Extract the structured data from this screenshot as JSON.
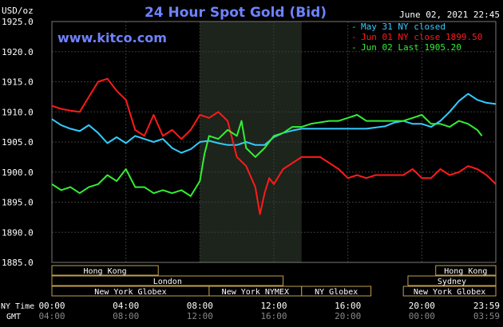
{
  "chart_data": {
    "type": "line",
    "title": "24 Hour Spot Gold (Bid)",
    "timestamp": "June 02, 2021 22:45",
    "watermark": "www.kitco.com",
    "ylabel": "USD/oz",
    "ylim": [
      1885,
      1925
    ],
    "yticks": [
      "1925.0",
      "1920.0",
      "1915.0",
      "1910.0",
      "1905.0",
      "1900.0",
      "1895.0",
      "1890.0",
      "1885.0"
    ],
    "xlim": [
      0,
      24
    ],
    "ny_time_label": "NY Time",
    "gmt_label": "GMT",
    "ny_ticks": [
      "00:00",
      "04:00",
      "08:00",
      "12:00",
      "16:00",
      "20:00",
      "23:59"
    ],
    "gmt_ticks": [
      "04:00",
      "08:00",
      "12:00",
      "16:00",
      "20:00",
      "00:00",
      "03:59"
    ],
    "grid": true,
    "legend_position": "top-right",
    "shaded_hours": [
      8.0,
      13.5
    ],
    "sessions": [
      {
        "label": "Hong Kong",
        "start": 0.0,
        "end": 5.75,
        "row": 0
      },
      {
        "label": "Hong Kong",
        "start": 20.75,
        "end": 24.0,
        "row": 0
      },
      {
        "label": "London",
        "start": 0.0,
        "end": 12.5,
        "row": 1
      },
      {
        "label": "Sydney",
        "start": 19.25,
        "end": 24.0,
        "row": 1
      },
      {
        "label": "New York Globex",
        "start": 0.0,
        "end": 8.5,
        "row": 2
      },
      {
        "label": "New York NYMEX",
        "start": 8.5,
        "end": 13.5,
        "row": 2
      },
      {
        "label": "NY Globex",
        "start": 13.5,
        "end": 17.25,
        "row": 2
      },
      {
        "label": "New York Globex",
        "start": 19.0,
        "end": 24.0,
        "row": 2
      }
    ],
    "series": [
      {
        "name": "May 31 NY closed",
        "color": "#33ccff",
        "x": [
          0,
          0.5,
          1.0,
          1.5,
          2.0,
          2.5,
          3.0,
          3.5,
          4.0,
          4.5,
          5.0,
          5.5,
          6.0,
          6.5,
          7.0,
          7.5,
          8.0,
          8.5,
          9.0,
          9.5,
          10.0,
          10.5,
          11.0,
          11.5,
          12.0,
          12.5,
          13.0,
          13.5,
          14.0,
          15.0,
          16.0,
          17.0,
          18.0,
          18.5,
          19.0,
          19.5,
          20.0,
          20.5,
          21.0,
          21.5,
          22.0,
          22.5,
          23.0,
          23.5,
          24.0
        ],
        "y": [
          1908.8,
          1907.8,
          1907.2,
          1906.8,
          1907.8,
          1906.5,
          1904.8,
          1905.8,
          1904.8,
          1906.0,
          1905.5,
          1905.0,
          1905.5,
          1904.0,
          1903.2,
          1903.8,
          1905.0,
          1905.2,
          1904.8,
          1904.5,
          1904.5,
          1905.0,
          1904.5,
          1904.5,
          1905.8,
          1906.5,
          1906.9,
          1907.2,
          1907.2,
          1907.2,
          1907.2,
          1907.2,
          1907.6,
          1908.2,
          1908.5,
          1908.0,
          1908.0,
          1907.5,
          1908.5,
          1910.0,
          1911.8,
          1913.0,
          1912.0,
          1911.5,
          1911.3
        ]
      },
      {
        "name": "Jun 01 NY close 1899.50",
        "color": "#ff1a1a",
        "x": [
          0,
          0.5,
          1.0,
          1.5,
          2.0,
          2.5,
          3.0,
          3.5,
          4.0,
          4.5,
          5.0,
          5.5,
          6.0,
          6.5,
          7.0,
          7.5,
          8.0,
          8.5,
          9.0,
          9.5,
          10.0,
          10.5,
          11.0,
          11.25,
          11.5,
          11.75,
          12.0,
          12.5,
          13.0,
          13.5,
          14.0,
          14.5,
          15.0,
          15.5,
          16.0,
          16.5,
          17.0,
          17.5,
          18.0,
          18.5,
          19.0,
          19.5,
          20.0,
          20.5,
          21.0,
          21.5,
          22.0,
          22.5,
          23.0,
          23.5,
          24.0
        ],
        "y": [
          1911.0,
          1910.5,
          1910.2,
          1910.0,
          1912.5,
          1915.0,
          1915.5,
          1913.5,
          1912.0,
          1907.0,
          1906.0,
          1909.5,
          1906.0,
          1907.0,
          1905.5,
          1907.0,
          1909.5,
          1909.0,
          1910.0,
          1908.5,
          1902.5,
          1901.0,
          1897.5,
          1893.0,
          1896.5,
          1899.0,
          1898.0,
          1900.5,
          1901.5,
          1902.5,
          1902.5,
          1902.5,
          1901.5,
          1900.5,
          1899.0,
          1899.5,
          1899.0,
          1899.5,
          1899.5,
          1899.5,
          1899.5,
          1900.5,
          1899.0,
          1899.0,
          1900.5,
          1899.5,
          1900.0,
          1901.0,
          1900.5,
          1899.5,
          1898.0
        ]
      },
      {
        "name": "Jun 02 Last 1905.20",
        "color": "#33ee33",
        "x": [
          0,
          0.5,
          1.0,
          1.5,
          2.0,
          2.5,
          3.0,
          3.5,
          4.0,
          4.5,
          5.0,
          5.5,
          6.0,
          6.5,
          7.0,
          7.5,
          8.0,
          8.25,
          8.5,
          9.0,
          9.5,
          10.0,
          10.25,
          10.5,
          11.0,
          11.5,
          12.0,
          12.5,
          13.0,
          13.5,
          14.0,
          15.0,
          15.5,
          16.0,
          16.5,
          17.0,
          17.5,
          18.0,
          18.5,
          19.0,
          19.5,
          20.0,
          20.5,
          21.0,
          21.5,
          22.0,
          22.5,
          23.0,
          23.25
        ],
        "y": [
          1898.0,
          1897.0,
          1897.5,
          1896.5,
          1897.5,
          1898.0,
          1899.5,
          1898.5,
          1900.5,
          1897.5,
          1897.5,
          1896.5,
          1897.0,
          1896.5,
          1897.0,
          1896.0,
          1898.5,
          1903.0,
          1906.0,
          1905.5,
          1907.0,
          1906.0,
          1908.5,
          1904.0,
          1902.5,
          1904.0,
          1906.0,
          1906.5,
          1907.5,
          1907.5,
          1908.0,
          1908.5,
          1908.5,
          1909.0,
          1909.5,
          1908.5,
          1908.5,
          1908.5,
          1908.5,
          1908.5,
          1909.0,
          1909.5,
          1908.0,
          1908.0,
          1907.5,
          1908.5,
          1908.0,
          1907.0,
          1906.0
        ]
      }
    ]
  }
}
